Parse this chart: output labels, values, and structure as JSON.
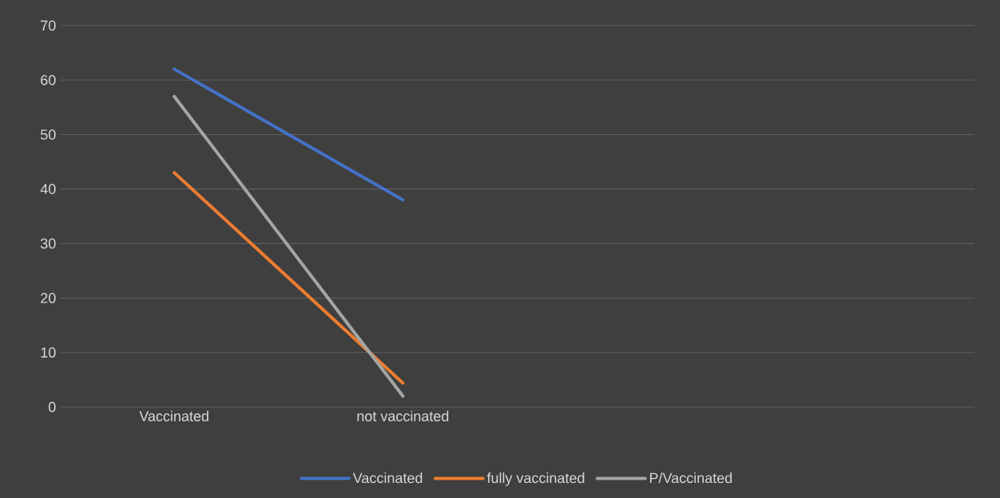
{
  "chart_data": {
    "type": "line",
    "categories": [
      "Vaccinated",
      "not vaccinated",
      null,
      null
    ],
    "series": [
      {
        "name": "Vaccinated",
        "color": "#4472c4",
        "values": [
          62,
          38,
          null,
          null
        ]
      },
      {
        "name": "fully vaccinated",
        "color": "#ed7d31",
        "values": [
          43,
          4.4,
          null,
          null
        ]
      },
      {
        "name": "P/Vaccinated",
        "color": "#a5a5a5",
        "values": [
          57,
          2,
          null,
          null
        ]
      }
    ],
    "ylim": [
      0,
      70
    ],
    "yticks": [
      0,
      10,
      20,
      30,
      40,
      50,
      60,
      70
    ],
    "grid": "y",
    "legend": "bottom",
    "marker": "none",
    "line_style": "solid"
  }
}
